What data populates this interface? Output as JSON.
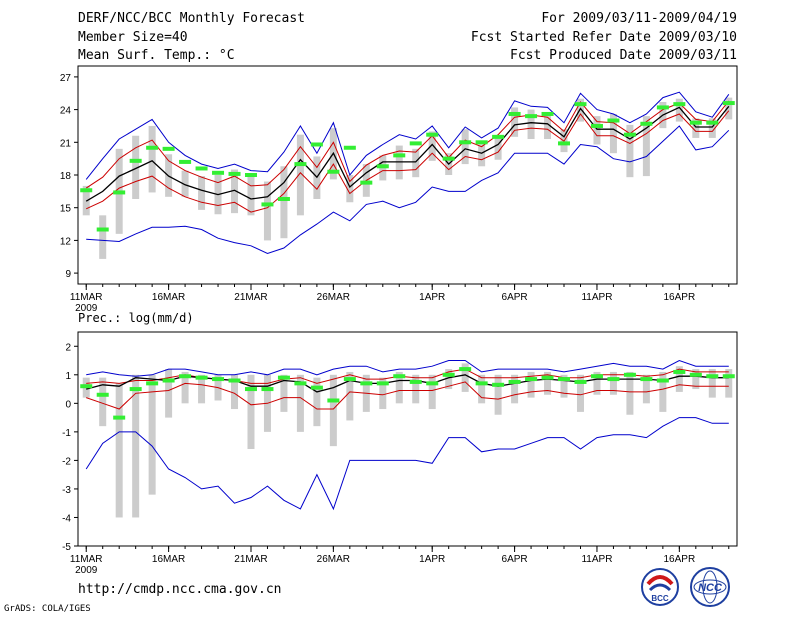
{
  "header": {
    "title": "DERF/NCC/BCC Monthly Forecast",
    "member": "Member Size=40",
    "variable": "Mean Surf. Temp.: °C",
    "period": "For 2009/03/11-2009/04/19",
    "started": "Fcst Started Refer Date 2009/03/10",
    "produced": "Fcst Produced Date 2009/03/11"
  },
  "footer": {
    "url": "http://cmdp.ncc.cma.gov.cn",
    "grads": "GrADS: COLA/IGES"
  },
  "logos": {
    "bcc": "BCC",
    "ncc": "NCC"
  },
  "colors": {
    "ensemble_mean": "#000000",
    "spread_red": "#cc0000",
    "extreme_blue": "#0000cc",
    "observed_green": "#33ee33",
    "member_bars": "#cccccc"
  },
  "chart_data": [
    {
      "type": "line",
      "title": "Mean Surf. Temp.: °C",
      "x_tick_labels": [
        "11MAR",
        "16MAR",
        "21MAR",
        "26MAR",
        "1APR",
        "6APR",
        "11APR",
        "16APR"
      ],
      "x_tick_days": [
        1,
        6,
        11,
        16,
        22,
        27,
        32,
        37
      ],
      "year_label": "2009",
      "xlim": [
        0.5,
        40.5
      ],
      "ylim": [
        8,
        28
      ],
      "y_ticks": [
        9,
        12,
        15,
        18,
        21,
        24,
        27
      ],
      "days": [
        1,
        2,
        3,
        4,
        5,
        6,
        7,
        8,
        9,
        10,
        11,
        12,
        13,
        14,
        15,
        16,
        17,
        18,
        19,
        20,
        21,
        22,
        23,
        24,
        25,
        26,
        27,
        28,
        29,
        30,
        31,
        32,
        33,
        34,
        35,
        36,
        37,
        38,
        39,
        40
      ],
      "series": [
        {
          "name": "ensemble_max",
          "color": "#0000cc",
          "values": [
            17.6,
            19.5,
            21.3,
            22.2,
            23.1,
            21.0,
            19.8,
            19.0,
            18.6,
            19.0,
            18.4,
            18.3,
            20.1,
            22.5,
            20.0,
            22.8,
            18.0,
            19.8,
            20.8,
            21.7,
            21.3,
            22.5,
            20.5,
            22.4,
            21.4,
            22.3,
            24.8,
            24.3,
            24.2,
            22.8,
            25.5,
            24.0,
            23.6,
            22.8,
            23.6,
            25.1,
            25.6,
            23.8,
            23.3,
            25.4
          ]
        },
        {
          "name": "upper_spread",
          "color": "#cc0000",
          "values": [
            16.8,
            17.8,
            19.5,
            20.5,
            21.2,
            19.3,
            18.4,
            17.8,
            17.3,
            17.9,
            17.0,
            17.1,
            18.5,
            20.6,
            18.7,
            21.0,
            17.4,
            18.9,
            19.8,
            20.2,
            20.1,
            21.6,
            19.6,
            21.2,
            20.6,
            21.7,
            23.3,
            23.5,
            23.3,
            22.0,
            24.7,
            22.9,
            22.8,
            21.8,
            22.9,
            24.0,
            24.6,
            23.1,
            22.9,
            24.8
          ]
        },
        {
          "name": "ensemble_mean",
          "color": "#000000",
          "values": [
            15.6,
            16.5,
            17.9,
            18.6,
            19.3,
            17.9,
            17.1,
            16.6,
            16.2,
            16.6,
            15.8,
            16.0,
            17.3,
            19.4,
            17.8,
            20.0,
            16.9,
            18.2,
            19.2,
            19.2,
            19.2,
            20.8,
            19.0,
            20.4,
            20.0,
            20.8,
            22.6,
            22.8,
            22.7,
            21.5,
            24.1,
            22.2,
            22.2,
            21.3,
            22.3,
            23.5,
            24.2,
            22.4,
            22.4,
            24.3
          ]
        },
        {
          "name": "lower_spread",
          "color": "#cc0000",
          "values": [
            14.9,
            15.6,
            16.8,
            17.4,
            17.9,
            16.8,
            16.0,
            15.5,
            15.2,
            15.5,
            14.6,
            15.0,
            16.3,
            18.2,
            16.7,
            19.0,
            16.3,
            17.5,
            18.4,
            18.4,
            18.5,
            20.0,
            18.5,
            19.7,
            19.4,
            20.1,
            22.1,
            22.3,
            22.2,
            21.1,
            23.6,
            21.6,
            21.6,
            20.9,
            21.8,
            23.0,
            23.6,
            22.0,
            22.0,
            23.9
          ]
        },
        {
          "name": "ensemble_min",
          "color": "#0000cc",
          "values": [
            12.1,
            12.0,
            11.9,
            12.6,
            13.2,
            13.2,
            13.3,
            13.0,
            12.2,
            11.8,
            11.5,
            10.8,
            11.3,
            12.5,
            13.5,
            14.6,
            13.8,
            15.3,
            15.6,
            15.0,
            15.5,
            16.9,
            16.5,
            16.5,
            17.5,
            18.2,
            20.0,
            20.0,
            20.0,
            19.0,
            20.8,
            20.6,
            19.5,
            19.2,
            19.7,
            21.1,
            22.5,
            20.3,
            20.6,
            22.1
          ]
        },
        {
          "name": "observed",
          "color": "#33ee33",
          "values": [
            16.6,
            13.0,
            16.4,
            19.3,
            20.5,
            20.4,
            19.2,
            18.6,
            18.2,
            18.1,
            18.0,
            15.3,
            15.8,
            19.0,
            20.8,
            18.3,
            20.5,
            17.3,
            18.8,
            19.8,
            20.9,
            21.7,
            19.5,
            21.0,
            21.0,
            21.5,
            23.6,
            23.4,
            23.6,
            20.9,
            24.5,
            22.5,
            23.0,
            21.7,
            22.7,
            24.2,
            24.5,
            22.8,
            22.8,
            24.6
          ]
        }
      ],
      "member_bars_low": [
        14.3,
        10.3,
        12.6,
        15.8,
        16.4,
        16.0,
        16.0,
        14.8,
        14.4,
        14.5,
        14.3,
        12.0,
        12.2,
        14.3,
        15.8,
        17.6,
        15.5,
        16.0,
        17.5,
        17.6,
        17.8,
        19.3,
        18.0,
        19.0,
        18.8,
        19.4,
        21.5,
        21.3,
        21.3,
        20.1,
        22.9,
        20.8,
        20.0,
        17.8,
        17.9,
        22.3,
        22.9,
        21.4,
        21.4,
        23.1
      ],
      "member_bars_high": [
        17.0,
        14.3,
        20.4,
        21.6,
        22.5,
        19.9,
        18.4,
        17.9,
        18.0,
        18.5,
        17.9,
        17.4,
        18.8,
        21.7,
        19.7,
        22.3,
        18.0,
        19.0,
        19.8,
        20.7,
        20.4,
        22.0,
        20.0,
        22.2,
        20.8,
        21.6,
        24.2,
        24.0,
        23.6,
        22.2,
        25.0,
        23.4,
        23.6,
        22.6,
        23.4,
        24.7,
        25.0,
        23.2,
        23.2,
        25.1
      ]
    },
    {
      "type": "line",
      "title": "Prec.: log(mm/d)",
      "x_tick_labels": [
        "11MAR",
        "16MAR",
        "21MAR",
        "26MAR",
        "1APR",
        "6APR",
        "11APR",
        "16APR"
      ],
      "x_tick_days": [
        1,
        6,
        11,
        16,
        22,
        27,
        32,
        37
      ],
      "year_label": "2009",
      "xlim": [
        0.5,
        40.5
      ],
      "ylim": [
        -5,
        2.5
      ],
      "y_ticks": [
        -5,
        -4,
        -3,
        -2,
        -1,
        0,
        1,
        2
      ],
      "days": [
        1,
        2,
        3,
        4,
        5,
        6,
        7,
        8,
        9,
        10,
        11,
        12,
        13,
        14,
        15,
        16,
        17,
        18,
        19,
        20,
        21,
        22,
        23,
        24,
        25,
        26,
        27,
        28,
        29,
        30,
        31,
        32,
        33,
        34,
        35,
        36,
        37,
        38,
        39,
        40
      ],
      "series": [
        {
          "name": "ensemble_max",
          "color": "#0000cc",
          "values": [
            1.0,
            1.1,
            1.0,
            0.95,
            1.0,
            1.2,
            1.2,
            1.1,
            1.0,
            1.0,
            1.1,
            1.0,
            1.2,
            1.2,
            1.0,
            1.2,
            1.3,
            1.3,
            1.1,
            1.2,
            1.2,
            1.3,
            1.5,
            1.5,
            1.1,
            1.2,
            1.2,
            1.2,
            1.2,
            1.1,
            1.2,
            1.3,
            1.4,
            1.3,
            1.3,
            1.2,
            1.5,
            1.3,
            1.3,
            1.3
          ]
        },
        {
          "name": "upper_spread",
          "color": "#cc0000",
          "values": [
            0.7,
            0.75,
            0.7,
            0.8,
            0.8,
            0.9,
            1.0,
            0.9,
            0.85,
            0.8,
            0.7,
            0.7,
            0.85,
            0.9,
            0.7,
            0.85,
            1.0,
            0.85,
            0.85,
            0.95,
            0.9,
            0.9,
            1.1,
            1.2,
            0.9,
            0.9,
            0.9,
            0.95,
            1.0,
            0.9,
            0.9,
            1.0,
            1.0,
            1.0,
            0.95,
            1.0,
            1.2,
            1.1,
            1.1,
            1.1
          ]
        },
        {
          "name": "ensemble_mean",
          "color": "#000000",
          "values": [
            0.5,
            0.65,
            0.6,
            0.9,
            0.85,
            0.8,
            0.95,
            0.9,
            0.85,
            0.8,
            0.6,
            0.6,
            0.8,
            0.75,
            0.4,
            0.55,
            0.8,
            0.7,
            0.7,
            0.8,
            0.8,
            0.7,
            0.9,
            1.0,
            0.7,
            0.6,
            0.7,
            0.8,
            0.85,
            0.8,
            0.75,
            0.85,
            0.85,
            0.85,
            0.85,
            0.8,
            0.95,
            0.95,
            0.9,
            0.9
          ]
        },
        {
          "name": "lower_spread",
          "color": "#cc0000",
          "values": [
            0.2,
            0.0,
            -0.2,
            0.35,
            0.4,
            0.45,
            0.7,
            0.65,
            0.55,
            0.35,
            -0.05,
            0.0,
            0.2,
            0.2,
            -0.2,
            -0.2,
            0.4,
            0.35,
            0.3,
            0.45,
            0.45,
            0.45,
            0.6,
            0.75,
            0.2,
            0.15,
            0.3,
            0.4,
            0.45,
            0.35,
            0.3,
            0.45,
            0.45,
            0.4,
            0.4,
            0.5,
            0.65,
            0.6,
            0.6,
            0.6
          ]
        },
        {
          "name": "ensemble_min",
          "color": "#0000cc",
          "values": [
            -2.3,
            -1.4,
            -1.0,
            -1.0,
            -1.5,
            -2.3,
            -2.6,
            -3.0,
            -2.9,
            -3.5,
            -3.3,
            -2.9,
            -3.4,
            -3.7,
            -2.5,
            -3.7,
            -2.0,
            -2.0,
            -2.0,
            -2.0,
            -2.0,
            -2.1,
            -1.2,
            -1.2,
            -1.7,
            -1.6,
            -1.6,
            -1.4,
            -1.2,
            -1.2,
            -1.6,
            -1.2,
            -1.1,
            -1.1,
            -1.2,
            -0.8,
            -0.5,
            -0.5,
            -0.7,
            -0.7
          ]
        },
        {
          "name": "observed",
          "color": "#33ee33",
          "values": [
            0.6,
            0.3,
            -0.5,
            0.5,
            0.7,
            0.8,
            0.95,
            0.9,
            0.85,
            0.8,
            0.5,
            0.5,
            0.9,
            0.7,
            0.55,
            0.1,
            0.85,
            0.7,
            0.7,
            0.95,
            0.75,
            0.7,
            1.0,
            1.2,
            0.7,
            0.65,
            0.75,
            0.85,
            0.9,
            0.85,
            0.75,
            0.95,
            0.85,
            1.0,
            0.85,
            0.8,
            1.1,
            1.0,
            0.95,
            0.95
          ]
        }
      ],
      "member_bars_low": [
        0.2,
        -0.8,
        -4.0,
        -4.0,
        -3.2,
        -0.5,
        0.0,
        0.0,
        0.1,
        -0.2,
        -1.6,
        -1.0,
        -0.3,
        -1.0,
        -0.8,
        -1.5,
        -0.6,
        -0.3,
        -0.2,
        0.0,
        0.0,
        -0.2,
        0.5,
        0.4,
        0.0,
        -0.4,
        0.0,
        0.2,
        0.3,
        0.2,
        -0.3,
        0.3,
        0.3,
        -0.4,
        0.0,
        -0.3,
        0.4,
        0.5,
        0.2,
        0.2
      ],
      "member_bars_high": [
        0.9,
        0.9,
        0.7,
        1.0,
        1.0,
        1.2,
        1.1,
        1.0,
        1.0,
        1.0,
        1.0,
        1.0,
        1.0,
        1.0,
        0.9,
        1.0,
        1.1,
        1.0,
        0.9,
        1.1,
        1.0,
        1.0,
        1.2,
        1.4,
        1.0,
        1.0,
        1.0,
        1.1,
        1.1,
        1.0,
        1.0,
        1.1,
        1.1,
        1.1,
        1.0,
        1.1,
        1.3,
        1.2,
        1.2,
        1.2
      ]
    }
  ]
}
